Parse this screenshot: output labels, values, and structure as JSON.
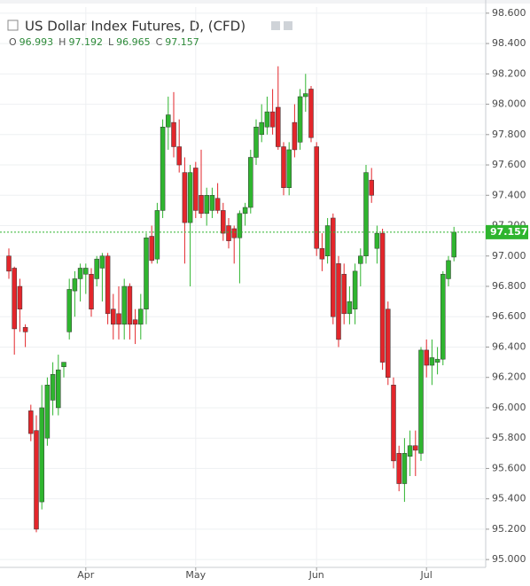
{
  "chart_data": {
    "type": "candlestick",
    "title": "US Dollar Index Futures, D, (CFD)",
    "ohlc_header": [
      {
        "label": "O",
        "value": 96.993
      },
      {
        "label": "H",
        "value": 97.192
      },
      {
        "label": "L",
        "value": 96.965
      },
      {
        "label": "C",
        "value": 97.157
      }
    ],
    "last_price": 97.157,
    "up_color": "#2fb52f",
    "down_color": "#e3262b",
    "categories": [
      null,
      null,
      null,
      null,
      null,
      null,
      null,
      null,
      null,
      null,
      null,
      null,
      null,
      null,
      "Apr",
      null,
      null,
      null,
      null,
      null,
      null,
      null,
      null,
      null,
      null,
      null,
      null,
      null,
      null,
      null,
      null,
      null,
      null,
      null,
      "May",
      null,
      null,
      null,
      null,
      null,
      null,
      null,
      null,
      null,
      null,
      null,
      null,
      null,
      null,
      null,
      null,
      null,
      null,
      null,
      null,
      null,
      "Jun",
      null,
      null,
      null,
      null,
      null,
      null,
      null,
      null,
      null,
      null,
      null,
      null,
      null,
      null,
      null,
      null,
      null,
      null,
      null,
      "Jul",
      null,
      null,
      null,
      null,
      null
    ],
    "open": [
      97.0,
      96.92,
      96.8,
      96.53,
      95.98,
      95.85,
      95.38,
      95.8,
      96.05,
      96.0,
      96.27,
      96.5,
      96.77,
      96.85,
      96.88,
      96.88,
      96.85,
      96.92,
      97.0,
      96.65,
      96.62,
      96.55,
      96.8,
      96.58,
      96.55,
      96.65,
      97.13,
      96.98,
      97.3,
      97.85,
      97.88,
      97.72,
      97.55,
      97.22,
      97.58,
      97.4,
      97.28,
      97.3,
      97.38,
      97.3,
      97.2,
      97.18,
      97.12,
      97.28,
      97.32,
      97.65,
      97.8,
      97.85,
      97.95,
      97.98,
      97.72,
      97.45,
      97.88,
      97.75,
      98.05,
      98.1,
      97.72,
      97.05,
      97.0,
      97.25,
      96.95,
      96.88,
      96.62,
      96.65,
      96.95,
      97.0,
      97.5,
      97.05,
      97.15,
      96.65,
      96.15,
      95.7,
      95.5,
      95.68,
      95.75,
      95.7,
      96.38,
      96.28,
      96.3,
      96.32,
      96.85,
      96.993
    ],
    "high": [
      97.05,
      96.93,
      96.85,
      96.55,
      96.02,
      95.95,
      96.15,
      96.2,
      96.3,
      96.35,
      96.3,
      96.85,
      96.9,
      96.95,
      96.95,
      96.92,
      97.0,
      97.02,
      97.02,
      96.75,
      96.8,
      96.85,
      96.82,
      96.65,
      96.75,
      97.15,
      97.2,
      97.35,
      97.9,
      98.05,
      98.08,
      97.9,
      97.65,
      97.6,
      97.62,
      97.7,
      97.45,
      97.45,
      97.48,
      97.35,
      97.25,
      97.2,
      97.3,
      97.35,
      97.7,
      97.9,
      98.0,
      98.05,
      98.1,
      98.25,
      97.75,
      97.75,
      98.0,
      98.1,
      98.2,
      98.12,
      97.75,
      97.15,
      97.25,
      97.28,
      97.0,
      96.95,
      96.8,
      96.95,
      97.05,
      97.6,
      97.58,
      97.2,
      97.18,
      96.7,
      96.2,
      95.75,
      95.8,
      95.85,
      95.85,
      96.4,
      96.45,
      96.45,
      96.4,
      96.9,
      97.0,
      97.192
    ],
    "low": [
      96.85,
      96.35,
      96.5,
      96.4,
      95.78,
      95.18,
      95.33,
      95.75,
      95.95,
      95.95,
      96.2,
      96.45,
      96.6,
      96.7,
      96.75,
      96.6,
      96.8,
      96.7,
      96.55,
      96.45,
      96.45,
      96.45,
      96.45,
      96.42,
      96.45,
      96.55,
      96.95,
      96.95,
      97.25,
      97.7,
      97.65,
      97.55,
      96.95,
      96.8,
      97.25,
      97.25,
      97.2,
      97.25,
      97.28,
      97.1,
      97.05,
      96.95,
      96.82,
      97.2,
      97.28,
      97.6,
      97.75,
      97.8,
      97.8,
      97.7,
      97.4,
      97.4,
      97.65,
      97.7,
      97.95,
      97.75,
      97.0,
      96.9,
      96.95,
      96.55,
      96.4,
      96.55,
      96.55,
      96.55,
      96.8,
      96.95,
      97.35,
      96.95,
      96.25,
      96.15,
      95.6,
      95.45,
      95.38,
      95.55,
      95.55,
      95.65,
      96.2,
      96.15,
      96.22,
      96.28,
      96.8,
      96.965
    ],
    "close": [
      96.9,
      96.52,
      96.65,
      96.5,
      95.83,
      95.2,
      96.0,
      96.15,
      96.22,
      96.25,
      96.3,
      96.78,
      96.85,
      96.92,
      96.92,
      96.65,
      96.98,
      97.0,
      96.62,
      96.55,
      96.55,
      96.8,
      96.55,
      96.55,
      96.65,
      97.12,
      96.97,
      97.3,
      97.85,
      97.93,
      97.72,
      97.6,
      97.22,
      97.55,
      97.3,
      97.28,
      97.4,
      97.4,
      97.3,
      97.15,
      97.1,
      97.12,
      97.28,
      97.32,
      97.65,
      97.85,
      97.88,
      97.95,
      97.85,
      97.72,
      97.45,
      97.7,
      97.7,
      98.05,
      98.07,
      97.78,
      97.05,
      96.98,
      97.2,
      96.6,
      96.45,
      96.62,
      96.7,
      96.9,
      97.0,
      97.55,
      97.4,
      97.15,
      96.3,
      96.2,
      95.65,
      95.5,
      95.7,
      95.75,
      95.72,
      96.38,
      96.28,
      96.33,
      96.32,
      96.88,
      96.97,
      97.157
    ],
    "ylim": [
      94.96,
      98.64
    ],
    "yticks": [
      {
        "value": 95,
        "label": "95.000"
      },
      {
        "value": 95.2,
        "label": "95.200"
      },
      {
        "value": 95.4,
        "label": "95.400"
      },
      {
        "value": 95.6,
        "label": "95.600"
      },
      {
        "value": 95.8,
        "label": "95.800"
      },
      {
        "value": 96,
        "label": "96.000"
      },
      {
        "value": 96.2,
        "label": "96.200"
      },
      {
        "value": 96.4,
        "label": "96.400"
      },
      {
        "value": 96.6,
        "label": "96.600"
      },
      {
        "value": 96.8,
        "label": "96.800"
      },
      {
        "value": 97,
        "label": "97.000"
      },
      {
        "value": 97.2,
        "label": "97.200"
      },
      {
        "value": 97.4,
        "label": "97.400"
      },
      {
        "value": 97.6,
        "label": "97.600"
      },
      {
        "value": 97.8,
        "label": "97.800"
      },
      {
        "value": 98,
        "label": "98.000"
      },
      {
        "value": 98.2,
        "label": "98.200"
      },
      {
        "value": 98.4,
        "label": "98.400"
      },
      {
        "value": 98.6,
        "label": "98.600"
      }
    ],
    "grid": true
  }
}
